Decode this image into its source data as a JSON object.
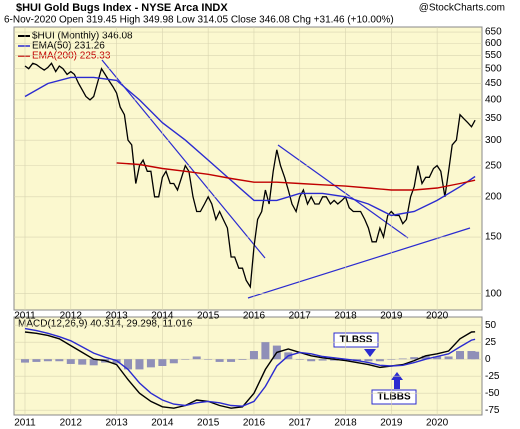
{
  "chart_data": [
    {
      "type": "line",
      "title": "$HUI Gold Bugs Index - NYSE Arca INDX",
      "subtitle": "6-Nov-2020   Open 319.45  High 349.98  Low 314.05  Close 346.08  Chg +31.46 (+10.00%)",
      "watermark": "@StockCharts.com",
      "log_scale": true,
      "grid": true,
      "xlim": [
        2010.76,
        2020.98
      ],
      "xticks": [
        2011,
        2012,
        2013,
        2014,
        2015,
        2016,
        2017,
        2018,
        2019,
        2020
      ],
      "ylim": [
        89,
        674
      ],
      "yticks": [
        100,
        150,
        200,
        250,
        300,
        350,
        400,
        450,
        500,
        550,
        600,
        650
      ],
      "series": [
        {
          "name": "$HUI (Monthly) 346.08",
          "color": "#000000",
          "x": [
            2011,
            2011.08,
            2011.17,
            2011.25,
            2011.33,
            2011.42,
            2011.5,
            2011.58,
            2011.67,
            2011.75,
            2011.83,
            2011.92,
            2012,
            2012.08,
            2012.17,
            2012.25,
            2012.33,
            2012.42,
            2012.5,
            2012.58,
            2012.67,
            2012.75,
            2012.83,
            2012.92,
            2013,
            2013.08,
            2013.17,
            2013.25,
            2013.33,
            2013.42,
            2013.5,
            2013.58,
            2013.67,
            2013.75,
            2013.83,
            2013.92,
            2014,
            2014.08,
            2014.17,
            2014.25,
            2014.33,
            2014.42,
            2014.5,
            2014.58,
            2014.67,
            2014.75,
            2014.83,
            2014.92,
            2015,
            2015.08,
            2015.17,
            2015.25,
            2015.33,
            2015.42,
            2015.5,
            2015.58,
            2015.67,
            2015.75,
            2015.83,
            2015.92,
            2016,
            2016.08,
            2016.17,
            2016.25,
            2016.33,
            2016.42,
            2016.5,
            2016.58,
            2016.67,
            2016.75,
            2016.83,
            2016.92,
            2017,
            2017.08,
            2017.17,
            2017.25,
            2017.33,
            2017.42,
            2017.5,
            2017.58,
            2017.67,
            2017.75,
            2017.83,
            2017.92,
            2018,
            2018.08,
            2018.17,
            2018.25,
            2018.33,
            2018.42,
            2018.5,
            2018.58,
            2018.67,
            2018.75,
            2018.83,
            2018.92,
            2019,
            2019.08,
            2019.17,
            2019.25,
            2019.33,
            2019.42,
            2019.5,
            2019.58,
            2019.67,
            2019.75,
            2019.83,
            2019.92,
            2020,
            2020.08,
            2020.17,
            2020.25,
            2020.33,
            2020.42,
            2020.5,
            2020.58,
            2020.67,
            2020.75,
            2020.83
          ],
          "values": [
            510,
            500,
            520,
            515,
            505,
            495,
            505,
            520,
            490,
            510,
            500,
            480,
            490,
            480,
            450,
            430,
            410,
            400,
            410,
            450,
            500,
            480,
            460,
            440,
            420,
            380,
            360,
            300,
            290,
            220,
            250,
            260,
            240,
            240,
            200,
            200,
            230,
            240,
            220,
            220,
            210,
            230,
            250,
            240,
            200,
            180,
            180,
            190,
            200,
            190,
            170,
            180,
            170,
            160,
            130,
            130,
            120,
            120,
            110,
            105,
            140,
            170,
            180,
            210,
            190,
            240,
            280,
            250,
            230,
            210,
            190,
            180,
            200,
            210,
            190,
            200,
            190,
            190,
            200,
            200,
            190,
            195,
            190,
            195,
            200,
            185,
            180,
            180,
            180,
            170,
            160,
            145,
            145,
            160,
            150,
            175,
            180,
            175,
            175,
            165,
            170,
            200,
            215,
            250,
            220,
            230,
            230,
            245,
            250,
            240,
            200,
            240,
            290,
            300,
            360,
            350,
            340,
            330,
            346.08
          ]
        },
        {
          "name": "EMA(50) 231.26",
          "color": "#2b2bd0",
          "x": [
            2011,
            2011.5,
            2012,
            2012.5,
            2013,
            2013.5,
            2014,
            2014.5,
            2015,
            2015.5,
            2016,
            2016.5,
            2017,
            2017.5,
            2018,
            2018.5,
            2019,
            2019.5,
            2020,
            2020.5,
            2020.83
          ],
          "values": [
            410,
            450,
            470,
            470,
            460,
            400,
            340,
            300,
            260,
            225,
            195,
            195,
            205,
            205,
            200,
            190,
            175,
            180,
            195,
            215,
            231.26
          ]
        },
        {
          "name": "EMA(200) 225.33",
          "color": "#c00000",
          "x": [
            2013,
            2013.5,
            2014,
            2014.5,
            2015,
            2015.5,
            2016,
            2016.5,
            2017,
            2017.5,
            2018,
            2018.5,
            2019,
            2019.5,
            2020,
            2020.5,
            2020.83
          ],
          "values": [
            255,
            252,
            245,
            240,
            235,
            228,
            222,
            222,
            220,
            218,
            216,
            213,
            210,
            210,
            213,
            220,
            225.33
          ]
        }
      ]
    },
    {
      "type": "line",
      "title": "MACD(12,26,9) 40.314, 29.298, 11.016",
      "annotations": [
        "TLBSS",
        "TLBBS"
      ],
      "grid": true,
      "xlim": [
        2010.76,
        2020.98
      ],
      "xticks": [
        2011,
        2012,
        2013,
        2014,
        2015,
        2016,
        2017,
        2018,
        2019,
        2020
      ],
      "ylim": [
        -82,
        62
      ],
      "yticks": [
        50,
        25,
        0,
        -25,
        -50,
        -75
      ],
      "series": [
        {
          "type": "bar",
          "color": "#8f8fb8",
          "x": [
            2011,
            2011.25,
            2011.5,
            2011.75,
            2012,
            2012.25,
            2012.5,
            2012.75,
            2013,
            2013.25,
            2013.5,
            2013.75,
            2014,
            2014.25,
            2014.5,
            2014.75,
            2015,
            2015.25,
            2015.5,
            2015.75,
            2016,
            2016.25,
            2016.5,
            2016.75,
            2017,
            2017.25,
            2017.5,
            2017.75,
            2018,
            2018.25,
            2018.5,
            2018.75,
            2019,
            2019.25,
            2019.5,
            2019.75,
            2020,
            2020.25,
            2020.5,
            2020.75,
            2020.83
          ],
          "values": [
            -5,
            -4,
            -3,
            -3,
            -7,
            -8,
            -9,
            -5,
            -6,
            -15,
            -15,
            -12,
            -10,
            -6,
            0,
            4,
            0,
            -4,
            -4,
            -1,
            12,
            25,
            20,
            10,
            0,
            -3,
            -2,
            -2,
            -2,
            -3,
            -3,
            -3,
            0,
            1,
            3,
            5,
            4,
            4,
            12,
            12,
            11.016
          ]
        },
        {
          "type": "line",
          "color": "#000000",
          "x": [
            2011,
            2011.25,
            2011.5,
            2011.75,
            2012,
            2012.25,
            2012.5,
            2012.75,
            2013,
            2013.25,
            2013.5,
            2013.75,
            2014,
            2014.25,
            2014.5,
            2014.75,
            2015,
            2015.25,
            2015.5,
            2015.75,
            2016,
            2016.25,
            2016.5,
            2016.75,
            2017,
            2017.25,
            2017.5,
            2017.75,
            2018,
            2018.25,
            2018.5,
            2018.75,
            2019,
            2019.25,
            2019.5,
            2019.75,
            2020,
            2020.25,
            2020.5,
            2020.75,
            2020.83
          ],
          "values": [
            40,
            38,
            35,
            30,
            20,
            10,
            0,
            -2,
            -8,
            -30,
            -50,
            -62,
            -70,
            -72,
            -68,
            -60,
            -62,
            -68,
            -72,
            -70,
            -50,
            -15,
            10,
            15,
            10,
            5,
            2,
            0,
            -2,
            -5,
            -8,
            -12,
            -10,
            -8,
            -2,
            5,
            8,
            12,
            30,
            40,
            40.314
          ]
        },
        {
          "type": "line",
          "color": "#2b2bd0",
          "x": [
            2011,
            2011.25,
            2011.5,
            2011.75,
            2012,
            2012.25,
            2012.5,
            2012.75,
            2013,
            2013.25,
            2013.5,
            2013.75,
            2014,
            2014.25,
            2014.5,
            2014.75,
            2015,
            2015.25,
            2015.5,
            2015.75,
            2016,
            2016.25,
            2016.5,
            2016.75,
            2017,
            2017.25,
            2017.5,
            2017.75,
            2018,
            2018.25,
            2018.5,
            2018.75,
            2019,
            2019.25,
            2019.5,
            2019.75,
            2020,
            2020.25,
            2020.5,
            2020.75,
            2020.83
          ],
          "values": [
            45,
            42,
            38,
            33,
            27,
            18,
            9,
            3,
            -2,
            -15,
            -35,
            -50,
            -60,
            -66,
            -68,
            -64,
            -62,
            -64,
            -68,
            -69,
            -62,
            -40,
            -10,
            5,
            10,
            8,
            4,
            2,
            0,
            -2,
            -5,
            -9,
            -10,
            -9,
            -5,
            0,
            4,
            8,
            18,
            28,
            29.298
          ]
        }
      ]
    }
  ]
}
